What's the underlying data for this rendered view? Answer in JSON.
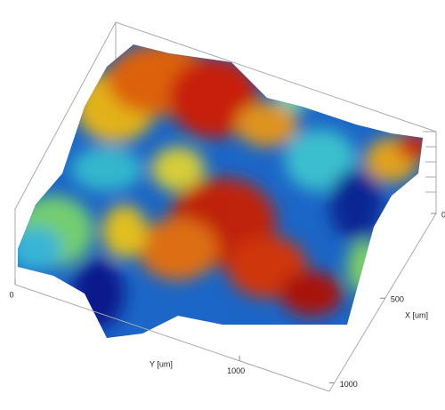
{
  "chart_data": {
    "type": "surface",
    "xlabel": "X [um]",
    "ylabel": "Y [um]",
    "xlim": [
      0,
      1050
    ],
    "xticks": [
      0,
      500,
      1000
    ],
    "ylim": [
      0,
      1400
    ],
    "yticks": [
      0,
      1000
    ]
  }
}
